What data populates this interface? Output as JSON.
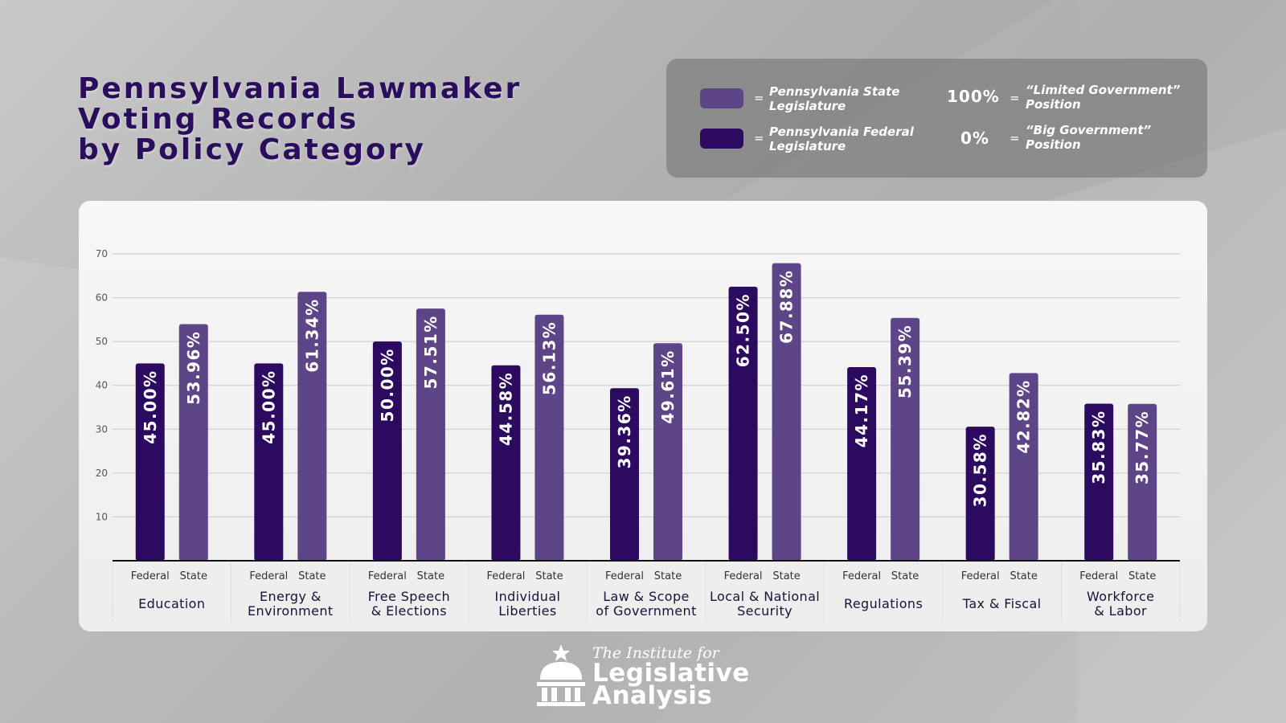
{
  "title_lines": [
    "Pennsylvania Lawmaker",
    "Voting Records",
    "by Policy Category"
  ],
  "legend": {
    "state_label_line1": "Pennsylvania State",
    "state_label_line2": "Legislature",
    "federal_label_line1": "Pennsylvania Federal",
    "federal_label_line2": "Legislature",
    "eq": "=",
    "pct_100": "100%",
    "pct_0": "0%",
    "limited_line1": "“Limited Government”",
    "limited_line2": "Position",
    "big_line1": "“Big Government”",
    "big_line2": "Position"
  },
  "colors": {
    "federal": "#2b0a5f",
    "state": "#5e4587",
    "axis": "#111111",
    "grid": "#c8c8c8"
  },
  "chart_data": {
    "type": "bar",
    "categories": [
      [
        "Education"
      ],
      [
        "Energy &",
        "Environment"
      ],
      [
        "Free Speech",
        "& Elections"
      ],
      [
        "Individual",
        "Liberties"
      ],
      [
        "Law & Scope",
        "of Government"
      ],
      [
        "Local & National",
        "Security"
      ],
      [
        "Regulations"
      ],
      [
        "Tax & Fiscal"
      ],
      [
        "Workforce",
        "& Labor"
      ]
    ],
    "series": [
      {
        "name": "Federal",
        "values": [
          45.0,
          45.0,
          50.0,
          44.58,
          39.36,
          62.5,
          44.17,
          30.58,
          35.83
        ]
      },
      {
        "name": "State",
        "values": [
          53.96,
          61.34,
          57.51,
          56.13,
          49.61,
          67.88,
          55.39,
          42.82,
          35.77
        ]
      }
    ],
    "ylim": [
      0,
      70
    ],
    "yticks": [
      10,
      20,
      30,
      40,
      50,
      60,
      70
    ],
    "grid": true
  },
  "logo": {
    "small": "The Institute for",
    "line1": "Legislative",
    "line2": "Analysis"
  }
}
